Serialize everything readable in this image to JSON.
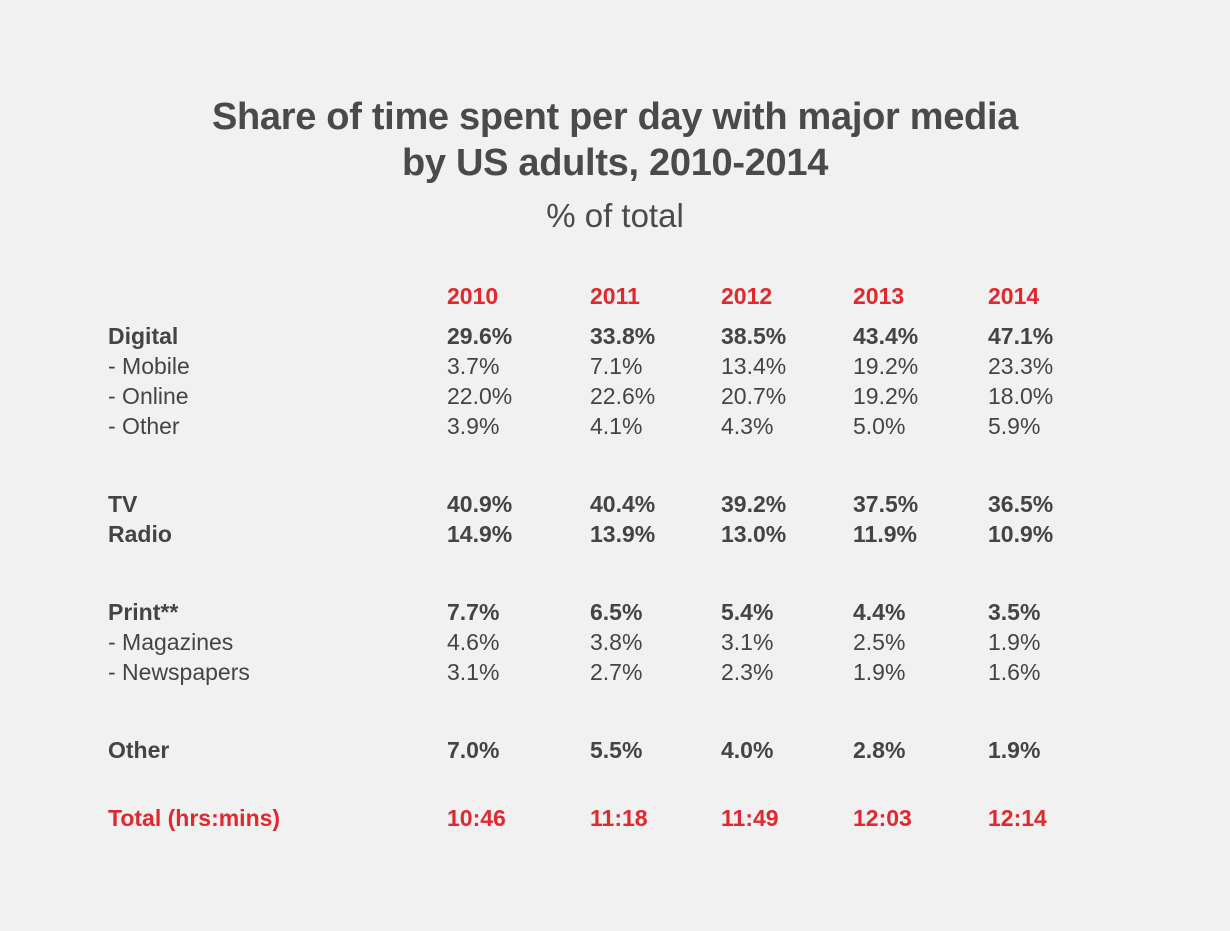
{
  "chart_data": {
    "type": "table",
    "title_lines": [
      "Share of time spent per day with major media",
      "by US adults, 2010-2014"
    ],
    "subtitle": "% of total",
    "columns": [
      "2010",
      "2011",
      "2012",
      "2013",
      "2014"
    ],
    "rows": [
      {
        "label": "Digital",
        "style": "bold",
        "values": [
          "29.6%",
          "33.8%",
          "38.5%",
          "43.4%",
          "47.1%"
        ]
      },
      {
        "label": "- Mobile",
        "style": "normal",
        "values": [
          "3.7%",
          "7.1%",
          "13.4%",
          "19.2%",
          "23.3%"
        ]
      },
      {
        "label": "- Online",
        "style": "normal",
        "values": [
          "22.0%",
          "22.6%",
          "20.7%",
          "19.2%",
          "18.0%"
        ]
      },
      {
        "label": "- Other",
        "style": "normal",
        "values": [
          "3.9%",
          "4.1%",
          "4.3%",
          "5.0%",
          "5.9%"
        ]
      },
      {
        "label": "TV",
        "style": "bold",
        "values": [
          "40.9%",
          "40.4%",
          "39.2%",
          "37.5%",
          "36.5%"
        ]
      },
      {
        "label": "Radio",
        "style": "bold",
        "values": [
          "14.9%",
          "13.9%",
          "13.0%",
          "11.9%",
          "10.9%"
        ]
      },
      {
        "label": "Print**",
        "style": "bold",
        "values": [
          "7.7%",
          "6.5%",
          "5.4%",
          "4.4%",
          "3.5%"
        ]
      },
      {
        "label": "- Magazines",
        "style": "normal",
        "values": [
          "4.6%",
          "3.8%",
          "3.1%",
          "2.5%",
          "1.9%"
        ]
      },
      {
        "label": "- Newspapers",
        "style": "normal",
        "values": [
          "3.1%",
          "2.7%",
          "2.3%",
          "1.9%",
          "1.6%"
        ]
      },
      {
        "label": "Other",
        "style": "bold",
        "values": [
          "7.0%",
          "5.5%",
          "4.0%",
          "2.8%",
          "1.9%"
        ]
      },
      {
        "label": "Total (hrs:mins)",
        "style": "total",
        "values": [
          "10:46",
          "11:18",
          "11:49",
          "12:03",
          "12:14"
        ]
      }
    ]
  },
  "colors": {
    "background": "#f1f1f1",
    "text": "#444444",
    "accent": "#e0282e"
  }
}
